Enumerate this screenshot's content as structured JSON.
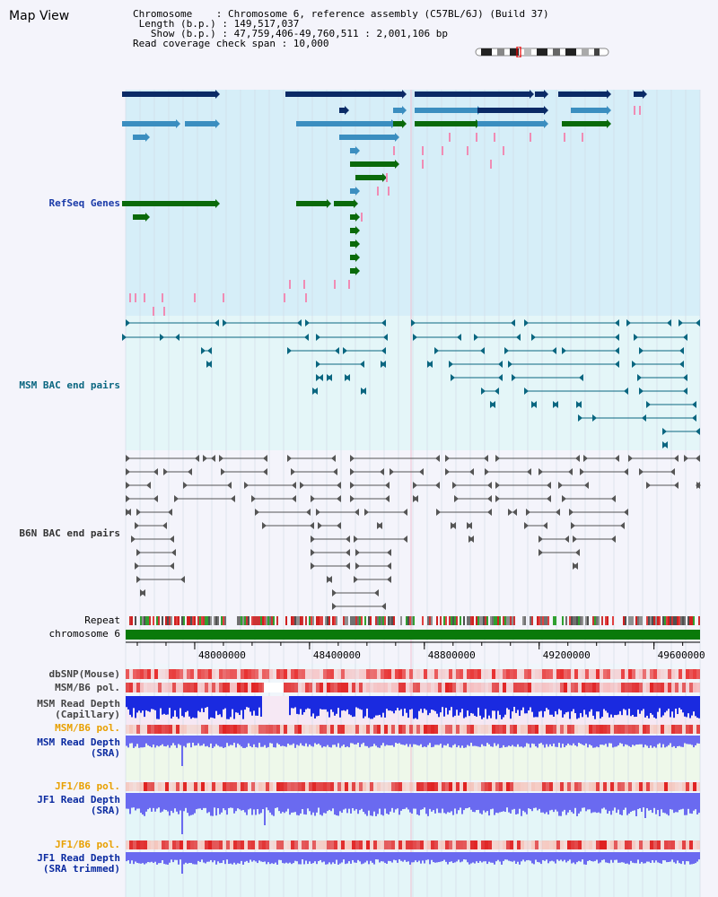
{
  "header": {
    "title": "Map View",
    "chromosome_line": "Chromosome    : Chromosome 6, reference assembly (C57BL/6J) (Build 37)",
    "length_line": " Length (b.p.) : 149,517,037",
    "show_line": "   Show (b.p.) : 47,759,406-49,760,511 : 2,001,106 bp",
    "coverage_line": "Read coverage check span : 10,000"
  },
  "tracks": {
    "refseq": "RefSeq Genes",
    "msm_bac": "MSM BAC end pairs",
    "b6n_bac": "B6N BAC end pairs",
    "repeat": "Repeat",
    "chromosome": "chromosome 6",
    "dbsnp": "dbSNP(Mouse)",
    "msm_b6_pol_1": "MSM/B6 pol.",
    "msm_depth_cap_1": "MSM Read Depth",
    "msm_depth_cap_2": "(Capillary)",
    "msm_b6_pol_2": "MSM/B6 pol.",
    "msm_depth_sra_1": "MSM Read Depth",
    "msm_depth_sra_2": "(SRA)",
    "jf1_b6_pol_1": "JF1/B6 pol.",
    "jf1_depth_sra_1": "JF1 Read Depth",
    "jf1_depth_sra_2": "(SRA)",
    "jf1_b6_pol_2": "JF1/B6 pol.",
    "jf1_depth_trim_1": "JF1 Read Depth",
    "jf1_depth_trim_2": "(SRA trimmed)"
  },
  "axis": {
    "ticks": [
      "48000000",
      "48400000",
      "48800000",
      "49200000",
      "49600000"
    ],
    "tick_values": [
      48000000,
      48400000,
      48800000,
      49200000,
      49600000
    ],
    "start": 47759406,
    "end": 49760511
  },
  "colors": {
    "refseq_dark": "#0a2a66",
    "refseq_mid": "#3b8ec0",
    "refseq_green": "#0a6a0a",
    "refseq_pink": "#f08cb4",
    "msm_bac": "#0a6680",
    "b6n_bac": "#555555",
    "chromosome": "#0a7a0a",
    "depth_blue": "#1a2ae0",
    "depth_sra": "#6a6af0"
  }
}
